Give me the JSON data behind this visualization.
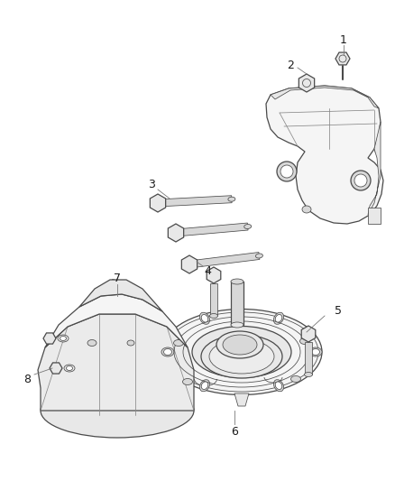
{
  "background_color": "#ffffff",
  "line_color": "#4a4a4a",
  "light_line": "#888888",
  "fill_light": "#f5f5f5",
  "fill_mid": "#e8e8e8",
  "fill_dark": "#d8d8d8",
  "label_color": "#1a1a1a",
  "label_fontsize": 9,
  "fig_width": 4.38,
  "fig_height": 5.33,
  "dpi": 100
}
